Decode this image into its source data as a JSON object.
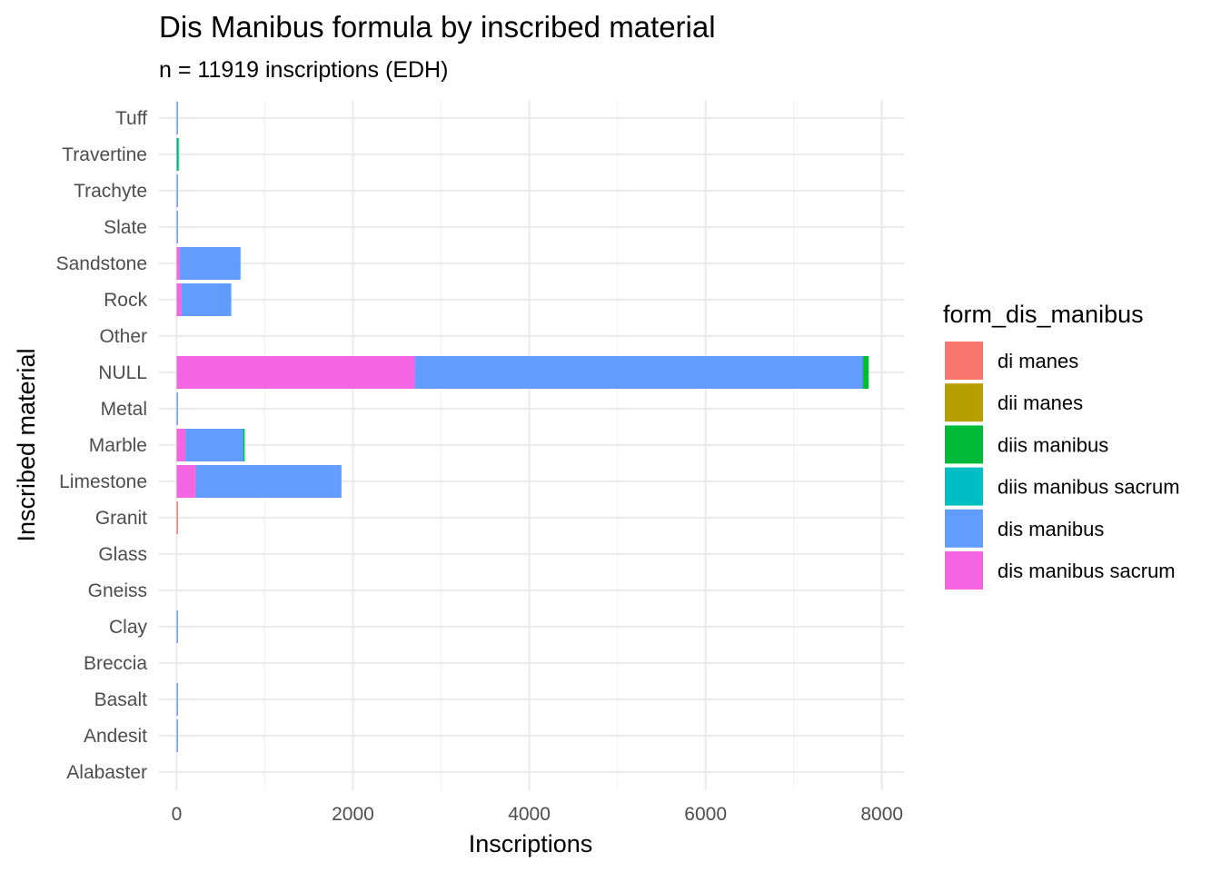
{
  "chart_data": {
    "type": "bar",
    "orientation": "horizontal",
    "stacked": true,
    "title": "Dis Manibus formula by inscribed material",
    "subtitle": "n = 11919 inscriptions (EDH)",
    "xlabel": "Inscriptions",
    "ylabel": "Inscribed material",
    "xlim": [
      -200,
      8250
    ],
    "x_ticks": [
      0,
      2000,
      4000,
      6000,
      8000
    ],
    "x_tick_labels": [
      "0",
      "2000",
      "4000",
      "6000",
      "8000"
    ],
    "grid": true,
    "legend_position": "right",
    "legend_title": "form_dis_manibus",
    "categories": [
      "Alabaster",
      "Andesit",
      "Basalt",
      "Breccia",
      "Clay",
      "Gneiss",
      "Glass",
      "Granit",
      "Limestone",
      "Marble",
      "Metal",
      "NULL",
      "Other",
      "Rock",
      "Sandstone",
      "Slate",
      "Trachyte",
      "Travertine",
      "Tuff"
    ],
    "series": [
      {
        "name": "dis manibus sacrum",
        "color": "#F564E3",
        "values": [
          0,
          0,
          0,
          0,
          0,
          0,
          0,
          0,
          210,
          100,
          0,
          2700,
          0,
          50,
          30,
          0,
          0,
          0,
          0
        ]
      },
      {
        "name": "dis manibus",
        "color": "#619CFF",
        "values": [
          0,
          4,
          4,
          0,
          4,
          0,
          0,
          0,
          1660,
          650,
          10,
          5080,
          0,
          570,
          695,
          3,
          3,
          0,
          12
        ]
      },
      {
        "name": "diis manibus sacrum",
        "color": "#00BFC4",
        "values": [
          0,
          0,
          0,
          0,
          0,
          0,
          0,
          0,
          0,
          5,
          0,
          0,
          0,
          0,
          0,
          0,
          0,
          8,
          0
        ]
      },
      {
        "name": "diis manibus",
        "color": "#00BA38",
        "values": [
          0,
          0,
          0,
          0,
          0,
          0,
          0,
          0,
          0,
          5,
          0,
          70,
          0,
          0,
          0,
          0,
          0,
          8,
          0
        ]
      },
      {
        "name": "dii manes",
        "color": "#B79F00",
        "values": [
          0,
          0,
          0,
          0,
          0,
          0,
          0,
          0,
          0,
          0,
          0,
          0,
          0,
          0,
          0,
          0,
          0,
          0,
          0
        ]
      },
      {
        "name": "di manes",
        "color": "#F8766D",
        "values": [
          0,
          0,
          0,
          0,
          0,
          0,
          0,
          5,
          0,
          0,
          0,
          0,
          0,
          0,
          0,
          0,
          0,
          0,
          0
        ]
      }
    ],
    "legend_order": [
      "di manes",
      "dii manes",
      "diis manibus",
      "diis manibus sacrum",
      "dis manibus",
      "dis manibus sacrum"
    ]
  }
}
